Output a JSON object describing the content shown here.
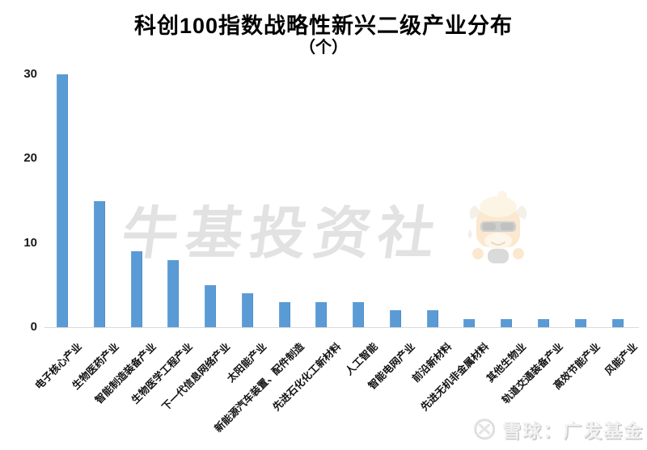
{
  "page": {
    "title": "科创100指数战略性新兴二级产业分布",
    "subtitle": "（个）"
  },
  "watermark": {
    "brand_text": "牛基投资社",
    "bull_icon": "bull-mascot-icon"
  },
  "footer": {
    "logo_icon": "xueqiu-logo-icon",
    "credit_text": "雪球：广发基金"
  },
  "chart_data": {
    "type": "bar",
    "title": "科创100指数战略性新兴二级产业分布",
    "unit_label": "（个）",
    "categories": [
      "电子核心产业",
      "生物医药产业",
      "智能制造装备产业",
      "生物医学工程产业",
      "下一代信息网络产业",
      "太阳能产业",
      "新能源汽车装置、配件制造",
      "先进石化化工新材料",
      "人工智能",
      "智能电网产业",
      "前沿新材料",
      "先进无机非金属材料",
      "其他生物业",
      "轨道交通装备产业",
      "高效节能产业",
      "风能产业"
    ],
    "values": [
      30,
      15,
      9,
      8,
      5,
      4,
      3,
      3,
      3,
      2,
      2,
      1,
      1,
      1,
      1,
      1
    ],
    "yticks": [
      0,
      10,
      20,
      30
    ],
    "ylim": [
      0,
      31
    ],
    "xlabel": "",
    "ylabel": "",
    "x_label_rotation_deg": -45,
    "grid": false,
    "legend": false,
    "bar_color": "#5b9bd5",
    "axis_line_color": "#d9d9d9"
  }
}
